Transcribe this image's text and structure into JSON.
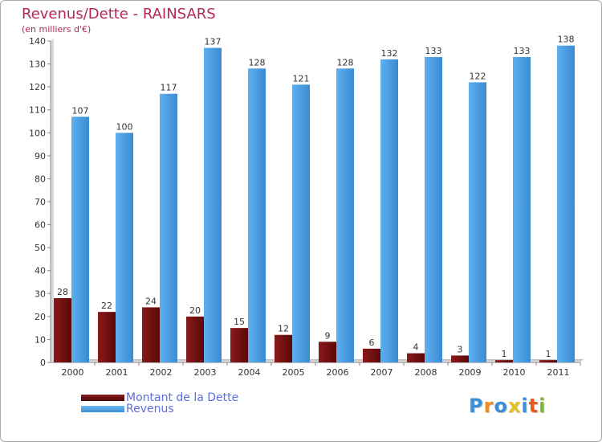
{
  "chart_data": {
    "type": "bar",
    "title": "Revenus/Dette - RAINSARS",
    "subtitle": "(en milliers d'€)",
    "categories": [
      "2000",
      "2001",
      "2002",
      "2003",
      "2004",
      "2005",
      "2006",
      "2007",
      "2008",
      "2009",
      "2010",
      "2011"
    ],
    "series": [
      {
        "name": "Montant de la Dette",
        "color": "#6b0d0d",
        "values": [
          28,
          22,
          24,
          20,
          15,
          12,
          9,
          6,
          4,
          3,
          1,
          1
        ]
      },
      {
        "name": "Revenus",
        "color": "#4a9fe0",
        "values": [
          107,
          100,
          117,
          137,
          128,
          121,
          128,
          132,
          133,
          122,
          133,
          138
        ]
      }
    ],
    "ylim": [
      0,
      140
    ],
    "yticks": [
      0,
      10,
      20,
      30,
      40,
      50,
      60,
      70,
      80,
      90,
      100,
      110,
      120,
      130,
      140
    ],
    "grid": false,
    "legend_position": "bottom-left"
  },
  "logo": {
    "text": "Proxiti",
    "letter_colors": [
      "#3a8fd8",
      "#f08a1c",
      "#3a8fd8",
      "#e8c21a",
      "#3a8fd8",
      "#e85a1a",
      "#7ab83a"
    ]
  }
}
